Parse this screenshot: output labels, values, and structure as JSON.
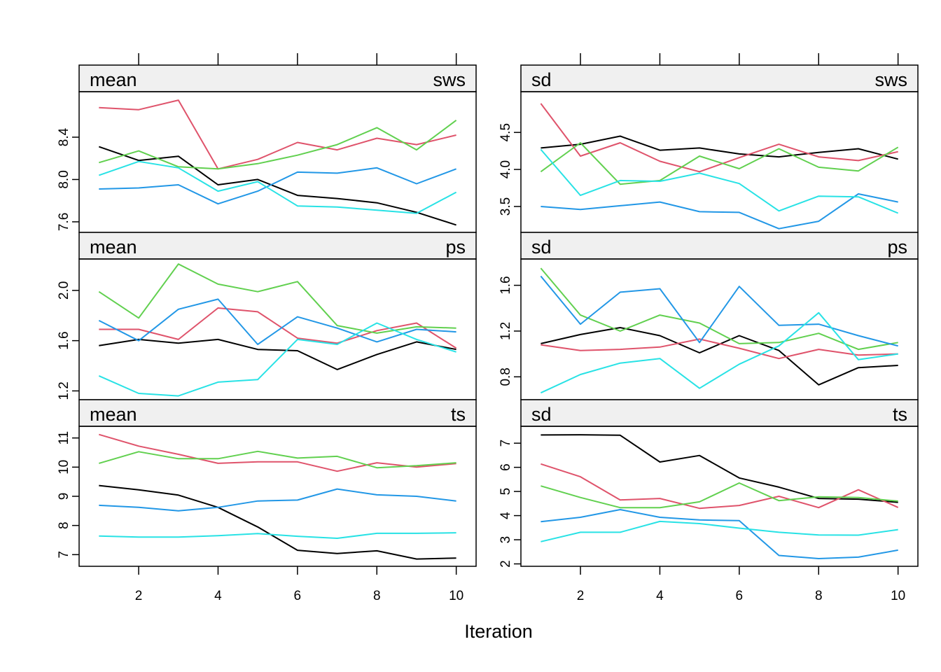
{
  "xlabel": "Iteration",
  "series_colors": [
    "#000000",
    "#DF536B",
    "#61D04F",
    "#2297E6",
    "#28E2E5"
  ],
  "chart_data": [
    {
      "type": "line",
      "stat": "mean",
      "variable": "sws",
      "x": [
        1,
        2,
        3,
        4,
        5,
        6,
        7,
        8,
        9,
        10
      ],
      "xlim": [
        0.5,
        10.5
      ],
      "ylim": [
        7.5,
        8.83
      ],
      "yticks": [
        7.6,
        8.0,
        8.4
      ],
      "ytick_labels": [
        "7.6",
        "8.0",
        "8.4"
      ],
      "series": [
        {
          "values": [
            8.31,
            8.18,
            8.22,
            7.95,
            8.0,
            7.85,
            7.82,
            7.78,
            7.69,
            7.57
          ]
        },
        {
          "values": [
            8.68,
            8.66,
            8.75,
            8.1,
            8.19,
            8.35,
            8.28,
            8.39,
            8.33,
            8.42
          ]
        },
        {
          "values": [
            8.16,
            8.27,
            8.12,
            8.1,
            8.15,
            8.23,
            8.33,
            8.49,
            8.28,
            8.56
          ]
        },
        {
          "values": [
            7.91,
            7.92,
            7.95,
            7.77,
            7.89,
            8.07,
            8.06,
            8.11,
            7.96,
            8.1
          ]
        },
        {
          "values": [
            8.04,
            8.17,
            8.11,
            7.89,
            7.98,
            7.75,
            7.74,
            7.71,
            7.68,
            7.88
          ]
        }
      ]
    },
    {
      "type": "line",
      "stat": "sd",
      "variable": "sws",
      "x": [
        1,
        2,
        3,
        4,
        5,
        6,
        7,
        8,
        9,
        10
      ],
      "xlim": [
        0.5,
        10.5
      ],
      "ylim": [
        3.15,
        5.05
      ],
      "yticks": [
        3.5,
        4.0,
        4.5
      ],
      "ytick_labels": [
        "3.5",
        "4.0",
        "4.5"
      ],
      "series": [
        {
          "values": [
            4.29,
            4.34,
            4.45,
            4.26,
            4.29,
            4.21,
            4.17,
            4.23,
            4.28,
            4.14
          ]
        },
        {
          "values": [
            4.89,
            4.18,
            4.36,
            4.11,
            3.97,
            4.16,
            4.34,
            4.17,
            4.12,
            4.24
          ]
        },
        {
          "values": [
            3.97,
            4.36,
            3.8,
            3.85,
            4.18,
            4.01,
            4.28,
            4.03,
            3.98,
            4.3
          ]
        },
        {
          "values": [
            3.5,
            3.46,
            3.51,
            3.56,
            3.43,
            3.42,
            3.2,
            3.3,
            3.67,
            3.56
          ]
        },
        {
          "values": [
            4.27,
            3.65,
            3.85,
            3.84,
            3.95,
            3.81,
            3.44,
            3.64,
            3.63,
            3.41
          ]
        }
      ]
    },
    {
      "type": "line",
      "stat": "mean",
      "variable": "ps",
      "x": [
        1,
        2,
        3,
        4,
        5,
        6,
        7,
        8,
        9,
        10
      ],
      "xlim": [
        0.5,
        10.5
      ],
      "ylim": [
        1.13,
        2.25
      ],
      "yticks": [
        1.2,
        1.6,
        2.0
      ],
      "ytick_labels": [
        "1.2",
        "1.6",
        "2.0"
      ],
      "series": [
        {
          "values": [
            1.56,
            1.61,
            1.58,
            1.61,
            1.53,
            1.52,
            1.37,
            1.49,
            1.59,
            1.53
          ]
        },
        {
          "values": [
            1.69,
            1.69,
            1.61,
            1.86,
            1.83,
            1.62,
            1.58,
            1.68,
            1.74,
            1.54
          ]
        },
        {
          "values": [
            1.99,
            1.78,
            2.21,
            2.05,
            1.99,
            2.07,
            1.72,
            1.66,
            1.71,
            1.7
          ]
        },
        {
          "values": [
            1.76,
            1.6,
            1.85,
            1.93,
            1.57,
            1.79,
            1.7,
            1.59,
            1.69,
            1.67
          ]
        },
        {
          "values": [
            1.32,
            1.18,
            1.16,
            1.27,
            1.29,
            1.61,
            1.57,
            1.74,
            1.61,
            1.51
          ]
        }
      ]
    },
    {
      "type": "line",
      "stat": "sd",
      "variable": "ps",
      "x": [
        1,
        2,
        3,
        4,
        5,
        6,
        7,
        8,
        9,
        10
      ],
      "xlim": [
        0.5,
        10.5
      ],
      "ylim": [
        0.6,
        1.83
      ],
      "yticks": [
        0.8,
        1.2,
        1.6
      ],
      "ytick_labels": [
        "0.8",
        "1.2",
        "1.6"
      ],
      "series": [
        {
          "values": [
            1.09,
            1.17,
            1.23,
            1.16,
            1.01,
            1.16,
            1.03,
            0.73,
            0.88,
            0.9
          ]
        },
        {
          "values": [
            1.08,
            1.03,
            1.04,
            1.06,
            1.13,
            1.05,
            0.96,
            1.04,
            0.99,
            1.0
          ]
        },
        {
          "values": [
            1.75,
            1.34,
            1.2,
            1.34,
            1.27,
            1.09,
            1.1,
            1.18,
            1.04,
            1.1
          ]
        },
        {
          "values": [
            1.68,
            1.26,
            1.54,
            1.57,
            1.1,
            1.59,
            1.25,
            1.26,
            1.16,
            1.07
          ]
        },
        {
          "values": [
            0.66,
            0.82,
            0.92,
            0.96,
            0.7,
            0.91,
            1.07,
            1.36,
            0.95,
            1.0
          ]
        }
      ]
    },
    {
      "type": "line",
      "stat": "mean",
      "variable": "ts",
      "x": [
        1,
        2,
        3,
        4,
        5,
        6,
        7,
        8,
        9,
        10
      ],
      "xlim": [
        0.5,
        10.5
      ],
      "ylim": [
        6.6,
        11.4
      ],
      "yticks": [
        7,
        8,
        9,
        10,
        11
      ],
      "ytick_labels": [
        "7",
        "8",
        "9",
        "10",
        "11"
      ],
      "series": [
        {
          "values": [
            9.37,
            9.22,
            9.04,
            8.62,
            7.95,
            7.15,
            7.04,
            7.13,
            6.85,
            6.88
          ]
        },
        {
          "values": [
            11.12,
            10.72,
            10.44,
            10.13,
            10.18,
            10.18,
            9.86,
            10.15,
            10.0,
            10.12
          ]
        },
        {
          "values": [
            10.13,
            10.53,
            10.29,
            10.29,
            10.54,
            10.31,
            10.37,
            9.98,
            10.05,
            10.15
          ]
        },
        {
          "values": [
            8.69,
            8.62,
            8.5,
            8.62,
            8.84,
            8.87,
            9.25,
            9.05,
            9.0,
            8.84
          ]
        },
        {
          "values": [
            7.64,
            7.6,
            7.6,
            7.65,
            7.72,
            7.63,
            7.56,
            7.73,
            7.73,
            7.75
          ]
        }
      ]
    },
    {
      "type": "line",
      "stat": "sd",
      "variable": "ts",
      "x": [
        1,
        2,
        3,
        4,
        5,
        6,
        7,
        8,
        9,
        10
      ],
      "xlim": [
        0.5,
        10.5
      ],
      "ylim": [
        1.9,
        7.7
      ],
      "yticks": [
        2,
        3,
        4,
        5,
        6,
        7
      ],
      "ytick_labels": [
        "2",
        "3",
        "4",
        "5",
        "6",
        "7"
      ],
      "series": [
        {
          "values": [
            7.34,
            7.35,
            7.33,
            6.22,
            6.49,
            5.56,
            5.18,
            4.71,
            4.68,
            4.55
          ]
        },
        {
          "values": [
            6.14,
            5.61,
            4.65,
            4.71,
            4.3,
            4.42,
            4.8,
            4.33,
            5.07,
            4.34
          ]
        },
        {
          "values": [
            5.23,
            4.75,
            4.33,
            4.33,
            4.57,
            5.35,
            4.62,
            4.78,
            4.75,
            4.6
          ]
        },
        {
          "values": [
            3.75,
            3.93,
            4.25,
            3.93,
            3.82,
            3.79,
            2.35,
            2.22,
            2.28,
            2.57
          ]
        },
        {
          "values": [
            2.92,
            3.31,
            3.31,
            3.76,
            3.67,
            3.48,
            3.31,
            3.2,
            3.19,
            3.42
          ]
        }
      ]
    }
  ]
}
